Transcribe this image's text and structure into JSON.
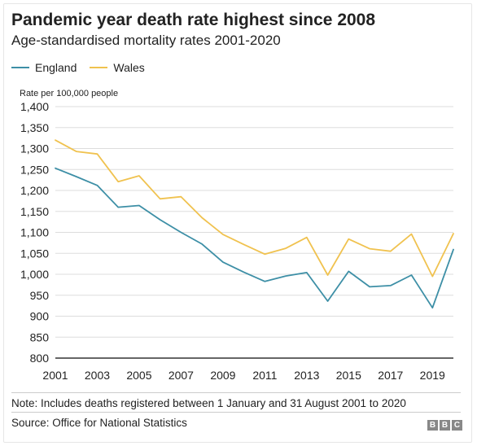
{
  "header": {
    "title": "Pandemic year death rate highest since 2008",
    "subtitle": "Age-standardised mortality rates 2001-2020"
  },
  "legend": {
    "items": [
      {
        "label": "England",
        "color": "#3d8fa6"
      },
      {
        "label": "Wales",
        "color": "#f0c24f"
      }
    ]
  },
  "chart_data": {
    "type": "line",
    "title": "Pandemic year death rate highest since 2008",
    "subtitle": "Age-standardised mortality rates 2001-2020",
    "ylabel": "Rate per 100,000 people",
    "xlabel": "",
    "x": [
      2001,
      2002,
      2003,
      2004,
      2005,
      2006,
      2007,
      2008,
      2009,
      2010,
      2011,
      2012,
      2013,
      2014,
      2015,
      2016,
      2017,
      2018,
      2019,
      2020
    ],
    "xlim": [
      2001,
      2020
    ],
    "ylim": [
      800,
      1400
    ],
    "xticks": [
      "2001",
      "2003",
      "2005",
      "2007",
      "2009",
      "2011",
      "2013",
      "2015",
      "2017",
      "2019"
    ],
    "yticks": [
      "800",
      "850",
      "900",
      "950",
      "1,000",
      "1,050",
      "1,100",
      "1,150",
      "1,200",
      "1,250",
      "1,300",
      "1,350",
      "1,400"
    ],
    "grid": "horizontal",
    "legend_position": "top-left",
    "series": [
      {
        "name": "England",
        "color": "#3d8fa6",
        "values": [
          1253,
          1233,
          1212,
          1160,
          1164,
          1130,
          1100,
          1072,
          1029,
          1005,
          983,
          996,
          1004,
          936,
          1007,
          970,
          973,
          998,
          920,
          1059
        ]
      },
      {
        "name": "Wales",
        "color": "#f0c24f",
        "values": [
          1320,
          1293,
          1287,
          1221,
          1235,
          1180,
          1185,
          1135,
          1095,
          1071,
          1048,
          1062,
          1088,
          998,
          1084,
          1061,
          1055,
          1096,
          995,
          1097
        ]
      }
    ]
  },
  "footer": {
    "note": "Note: Includes deaths registered between 1 January and 31 August 2001 to 2020",
    "source": "Source: Office for National Statistics",
    "logo": [
      "B",
      "B",
      "C"
    ]
  }
}
